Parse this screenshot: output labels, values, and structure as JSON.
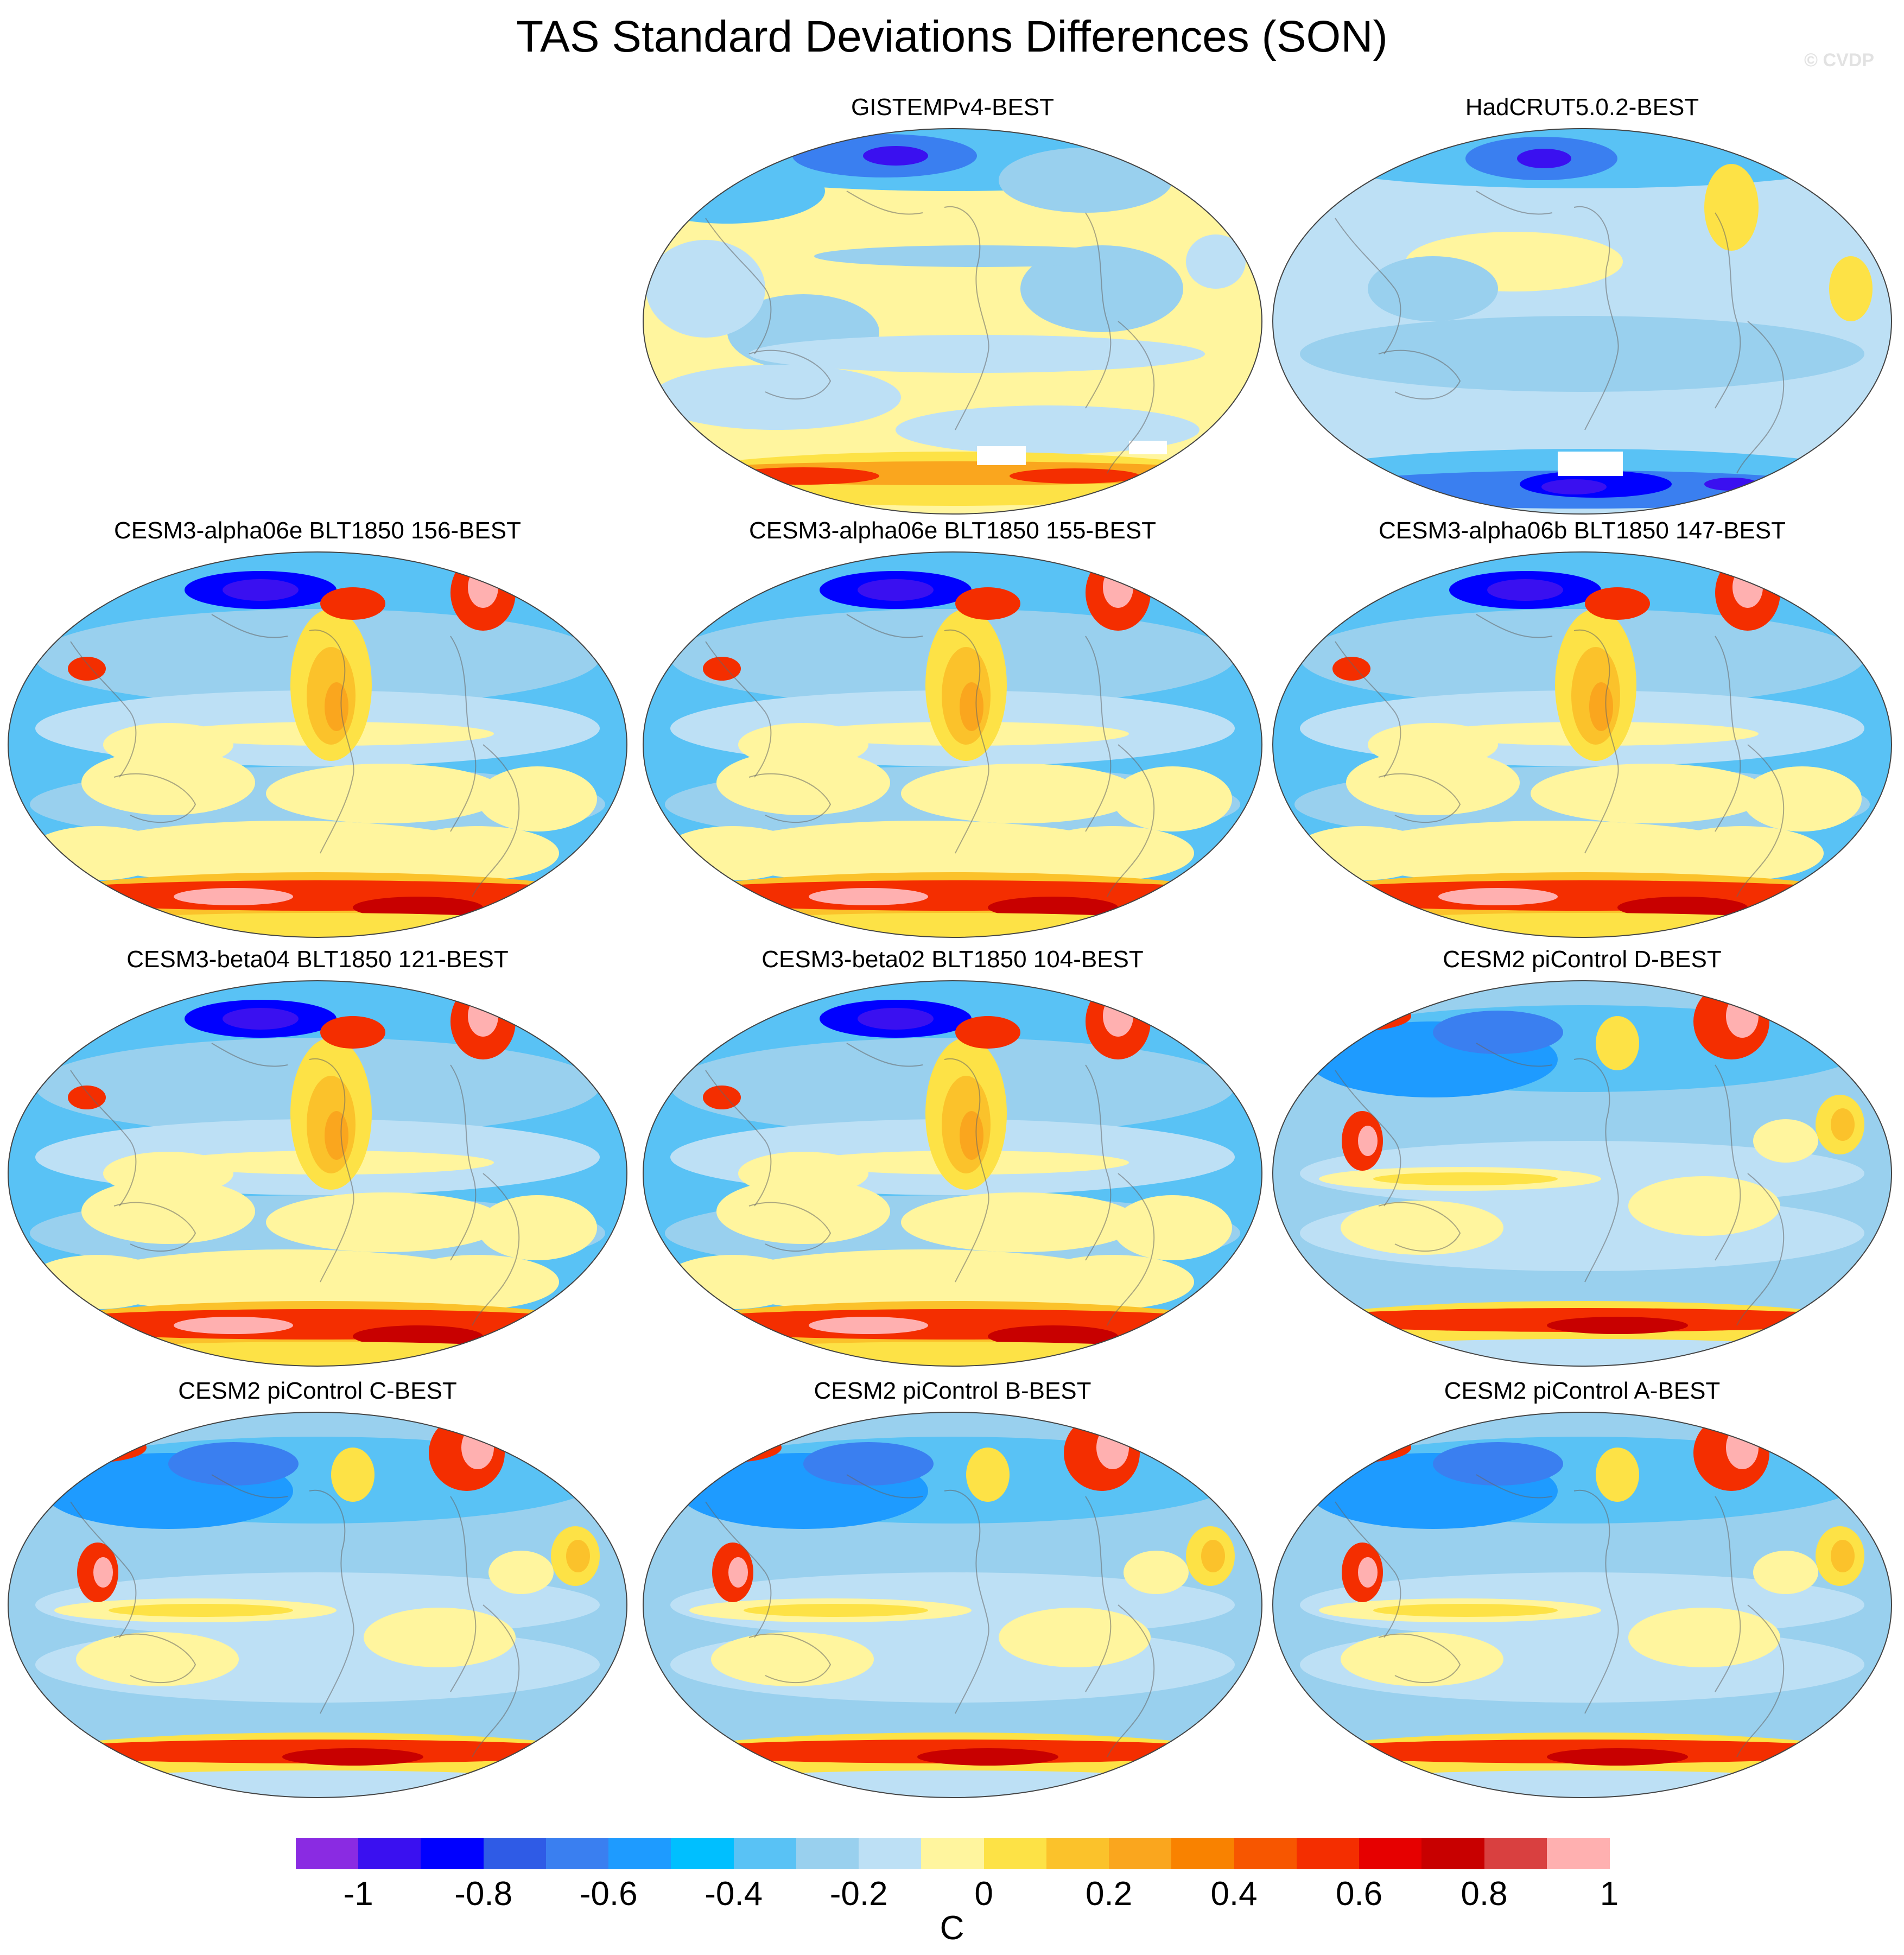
{
  "figure": {
    "title": "TAS Standard Deviations Differences (SON)",
    "watermark": "© CVDP"
  },
  "panels": [
    {
      "title": "GISTEMPv4-BEST",
      "style": "gistemp"
    },
    {
      "title": "HadCRUT5.0.2-BEST",
      "style": "hadcrut"
    },
    {
      "title": "CESM3-alpha06e BLT1850 156-BEST",
      "style": "model"
    },
    {
      "title": "CESM3-alpha06e BLT1850 155-BEST",
      "style": "model"
    },
    {
      "title": "CESM3-alpha06b BLT1850 147-BEST",
      "style": "model"
    },
    {
      "title": "CESM3-beta04 BLT1850 121-BEST",
      "style": "model"
    },
    {
      "title": "CESM3-beta02 BLT1850 104-BEST",
      "style": "model"
    },
    {
      "title": "CESM2 piControl D-BEST",
      "style": "pictrl"
    },
    {
      "title": "CESM2 piControl C-BEST",
      "style": "pictrl"
    },
    {
      "title": "CESM2 piControl B-BEST",
      "style": "pictrl"
    },
    {
      "title": "CESM2 piControl A-BEST",
      "style": "pictrl"
    }
  ],
  "colorbar": {
    "colors": [
      "#8a2be2",
      "#3a10f0",
      "#0000ff",
      "#2f5be6",
      "#3a7ff0",
      "#1e9bff",
      "#00bfff",
      "#59c2f5",
      "#99d0ee",
      "#bde0f5",
      "#fff59e",
      "#fde246",
      "#fbc22b",
      "#faa61e",
      "#f98200",
      "#f75600",
      "#f42e00",
      "#e60000",
      "#c80000",
      "#d94040",
      "#ffb0b0"
    ],
    "tick_labels": [
      "-1",
      "-0.8",
      "-0.6",
      "-0.4",
      "-0.2",
      "0",
      "0.2",
      "0.4",
      "0.6",
      "0.8",
      "1"
    ],
    "tick_values": [
      -1,
      -0.8,
      -0.6,
      -0.4,
      -0.2,
      0,
      0.2,
      0.4,
      0.6,
      0.8,
      1
    ],
    "unit": "C"
  }
}
